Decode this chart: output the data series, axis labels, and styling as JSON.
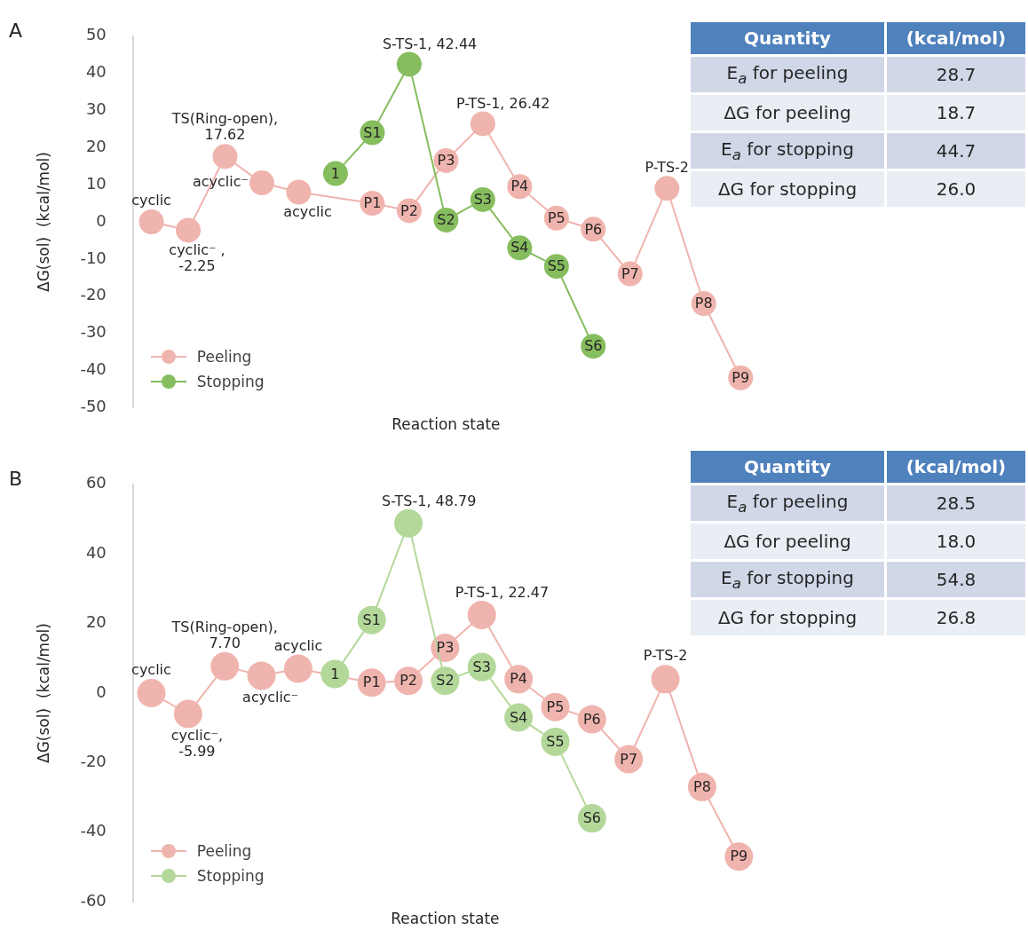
{
  "chart_data": [
    {
      "type": "line",
      "title": "A",
      "annotations": [
        {
          "text": "1",
          "y": 13
        }
      ],
      "xlabel": "Reaction state",
      "ylabel": "ΔG(sol)  (kcal/mol)",
      "categories": [
        null,
        null,
        null,
        null,
        null,
        null,
        null,
        null,
        null,
        null,
        null,
        null,
        null,
        null,
        null,
        null,
        null
      ],
      "ylim": [
        -50,
        50
      ],
      "yticks": [
        -50,
        -40,
        -30,
        -20,
        -10,
        0,
        10,
        20,
        30,
        40,
        50
      ],
      "tick_labels": "y",
      "marker": "circle",
      "legend": "bottom left",
      "series": [
        {
          "name": "Peeling",
          "color": "#f0b4ae",
          "values": [
            0,
            -2.25,
            17.62,
            10.5,
            8,
            null,
            5,
            3,
            16.5,
            26.42,
            9.5,
            1,
            -2,
            -14,
            9,
            -22,
            -42
          ],
          "value_labels": [
            "cyclic",
            "cyclic⁻ , -2.25",
            "TS(Ring-open), 17.62",
            "acyclic⁻",
            "acyclic",
            null,
            "P1",
            "P2",
            "P3",
            "P-TS-1, 26.42",
            "P4",
            "P5",
            "P6",
            "P7",
            "P-TS-2",
            "P8",
            "P9"
          ]
        },
        {
          "name": "Stopping",
          "color": "#86bd5e",
          "values": [
            null,
            null,
            null,
            null,
            null,
            13,
            24,
            42.44,
            0.5,
            6,
            -7,
            -12,
            -33.5,
            null,
            null,
            null,
            null
          ],
          "value_labels": [
            null,
            null,
            null,
            null,
            null,
            null,
            "S1",
            "S-TS-1, 42.44",
            "S2",
            "S3",
            "S4",
            "S5",
            "S6",
            null,
            null,
            null,
            null
          ]
        }
      ]
    },
    {
      "type": "other",
      "categories": [
        "E$_{a}$ for peeling",
        "ΔG for peeling",
        "E$_{a}$ for stopping",
        "ΔG for stopping"
      ],
      "values": [
        28.7,
        18.7,
        44.7,
        26.0
      ],
      "value_labels": [
        "28.7",
        "18.7",
        "44.7",
        "26.0"
      ],
      "annotations": [
        "Quantity",
        "(kcal/mol)"
      ]
    },
    {
      "type": "line",
      "title": "B",
      "annotations": [
        {
          "text": "1",
          "y": 5.5
        }
      ],
      "xlabel": "Reaction state",
      "ylabel": "ΔG(sol)  (kcal/mol)",
      "categories": [
        null,
        null,
        null,
        null,
        null,
        null,
        null,
        null,
        null,
        null,
        null,
        null,
        null,
        null,
        null,
        null,
        null
      ],
      "ylim": [
        -60,
        60
      ],
      "yticks": [
        -60,
        -40,
        -20,
        0,
        20,
        40,
        60
      ],
      "tick_labels": "y",
      "marker": "circle",
      "legend": "bottom left",
      "series": [
        {
          "name": "Peeling",
          "color": "#f0b4ae",
          "values": [
            0,
            -5.99,
            7.7,
            5,
            7,
            null,
            3,
            3.5,
            13,
            22.47,
            4,
            -4,
            -7.5,
            -19,
            4,
            -27,
            -47
          ],
          "value_labels": [
            "cyclic",
            "cyclic⁻, -5.99",
            "TS(Ring-open), 7.70",
            "acyclic⁻",
            "acyclic",
            null,
            "P1",
            "P2",
            "P3",
            "P-TS-1, 22.47",
            "P4",
            "P5",
            "P6",
            "P7",
            "P-TS-2",
            "P8",
            "P9"
          ]
        },
        {
          "name": "Stopping",
          "color": "#b3d89a",
          "values": [
            null,
            null,
            null,
            null,
            null,
            5.5,
            21,
            48.79,
            3.5,
            7.5,
            -7,
            -14,
            -36,
            null,
            null,
            null,
            null
          ],
          "value_labels": [
            null,
            null,
            null,
            null,
            null,
            null,
            "S1",
            "S-TS-1, 48.79",
            "S2",
            "S3",
            "S4",
            "S5",
            "S6",
            null,
            null,
            null,
            null
          ]
        }
      ]
    },
    {
      "type": "other",
      "categories": [
        "E$_{a}$ for peeling",
        "ΔG for peeling",
        "E$_{a}$ for stopping",
        "ΔG for stopping"
      ],
      "values": [
        28.5,
        18.0,
        54.8,
        26.8
      ],
      "value_labels": [
        "28.5",
        "18.0",
        "54.8",
        "26.8"
      ],
      "annotations": [
        "Quantity",
        "(kcal/mol)"
      ]
    }
  ]
}
